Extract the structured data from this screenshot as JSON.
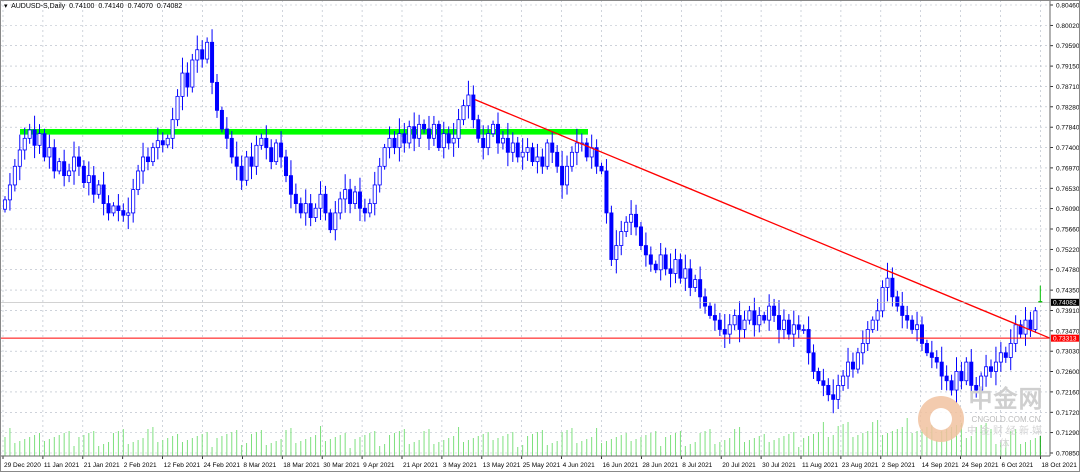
{
  "header": {
    "menu_icon": "triangle-down-icon",
    "symbol": "AUDUSD-S,Daily",
    "open": "0.74100",
    "high": "0.74140",
    "low": "0.74070",
    "close": "0.74082"
  },
  "watermark": {
    "logo_text": "中金网",
    "url": "CNGOLD.COM.CN",
    "tagline": "中金财经新媒体"
  },
  "colors": {
    "bear": "#0000ff",
    "bull_fill": "#ffffff",
    "bull_border": "#0000ff",
    "current": "#00c000",
    "volume": "#32cd32",
    "band": "#00ff00",
    "resistance": "#ff0000",
    "grid": "#b0b8c4"
  },
  "chart_data": {
    "type": "candlestick",
    "timeframe": "Daily",
    "ylim": [
      0.7085,
      0.8046
    ],
    "y_ticks": [
      "0.80460",
      "0.80020",
      "0.79590",
      "0.79150",
      "0.78710",
      "0.78280",
      "0.77840",
      "0.77400",
      "0.76970",
      "0.76530",
      "0.76090",
      "0.75660",
      "0.75220",
      "0.74780",
      "0.74350",
      "0.73910",
      "0.73470",
      "0.73030",
      "0.72600",
      "0.72160",
      "0.71720",
      "0.71290",
      "0.70850"
    ],
    "x_ticks": [
      "29 Dec 2020",
      "11 Jan 2021",
      "21 Jan 2021",
      "2 Feb 2021",
      "12 Feb 2021",
      "24 Feb 2021",
      "8 Mar 2021",
      "18 Mar 2021",
      "30 Mar 2021",
      "9 Apr 2021",
      "21 Apr 2021",
      "3 May 2021",
      "13 May 2021",
      "25 May 2021",
      "4 Jun 2021",
      "16 Jun 2021",
      "28 Jun 2021",
      "8 Jul 2021",
      "20 Jul 2021",
      "30 Jul 2021",
      "11 Aug 2021",
      "23 Aug 2021",
      "2 Sep 2021",
      "14 Sep 2021",
      "24 Sep 2021",
      "6 Oct 2021",
      "18 Oct 2021"
    ],
    "closes": [
      0.7628,
      0.766,
      0.77,
      0.7735,
      0.776,
      0.7778,
      0.7745,
      0.777,
      0.772,
      0.774,
      0.769,
      0.771,
      0.768,
      0.769,
      0.772,
      0.77,
      0.7665,
      0.768,
      0.764,
      0.766,
      0.762,
      0.76,
      0.7615,
      0.7605,
      0.7595,
      0.76,
      0.765,
      0.769,
      0.772,
      0.771,
      0.774,
      0.7755,
      0.7746,
      0.776,
      0.78,
      0.785,
      0.79,
      0.787,
      0.7928,
      0.795,
      0.793,
      0.7966,
      0.788,
      0.782,
      0.778,
      0.776,
      0.772,
      0.77,
      0.767,
      0.772,
      0.77,
      0.7745,
      0.776,
      0.774,
      0.771,
      0.775,
      0.772,
      0.768,
      0.764,
      0.762,
      0.76,
      0.762,
      0.759,
      0.761,
      0.764,
      0.76,
      0.7564,
      0.76,
      0.763,
      0.765,
      0.762,
      0.7645,
      0.761,
      0.76,
      0.762,
      0.766,
      0.77,
      0.774,
      0.776,
      0.774,
      0.777,
      0.775,
      0.7785,
      0.776,
      0.779,
      0.778,
      0.776,
      0.779,
      0.774,
      0.777,
      0.775,
      0.776,
      0.78,
      0.783,
      0.7853,
      0.78,
      0.776,
      0.774,
      0.777,
      0.779,
      0.775,
      0.776,
      0.773,
      0.775,
      0.772,
      0.773,
      0.774,
      0.771,
      0.772,
      0.77,
      0.775,
      0.773,
      0.77,
      0.766,
      0.77,
      0.773,
      0.775,
      0.775,
      0.772,
      0.774,
      0.77,
      0.769,
      0.76,
      0.75,
      0.753,
      0.756,
      0.758,
      0.7597,
      0.757,
      0.753,
      0.751,
      0.749,
      0.7478,
      0.751,
      0.748,
      0.747,
      0.75,
      0.746,
      0.748,
      0.744,
      0.7457,
      0.742,
      0.74,
      0.738,
      0.737,
      0.735,
      0.734,
      0.736,
      0.738,
      0.735,
      0.737,
      0.739,
      0.736,
      0.738,
      0.737,
      0.74,
      0.738,
      0.735,
      0.737,
      0.734,
      0.736,
      0.735,
      0.735,
      0.73,
      0.726,
      0.724,
      0.723,
      0.721,
      0.72,
      0.723,
      0.725,
      0.728,
      0.7265,
      0.73,
      0.732,
      0.735,
      0.737,
      0.739,
      0.744,
      0.746,
      0.742,
      0.74,
      0.738,
      0.737,
      0.735,
      0.736,
      0.732,
      0.73,
      0.729,
      0.728,
      0.725,
      0.724,
      0.722,
      0.726,
      0.724,
      0.728,
      0.723,
      0.722,
      0.725,
      0.727,
      0.726,
      0.728,
      0.73,
      0.729,
      0.732,
      0.736,
      0.734,
      0.737,
      0.735,
      0.739,
      0.7408
    ],
    "last_bar": {
      "open": 0.741,
      "high": 0.7414,
      "low": 0.7407,
      "close": 0.74082
    },
    "support_band": {
      "from": 0.7768,
      "to": 0.778,
      "start_date": "29 Dec 2020",
      "end_date": "16 Jun 2021"
    },
    "horizontal_line": {
      "price": 0.73313,
      "label": "0.73313"
    },
    "current_price": {
      "price": 0.74082,
      "label": "0.74082"
    },
    "trendline": {
      "start_date": "13 May 2021",
      "start_price": 0.7843,
      "end_price": 0.73313
    }
  }
}
